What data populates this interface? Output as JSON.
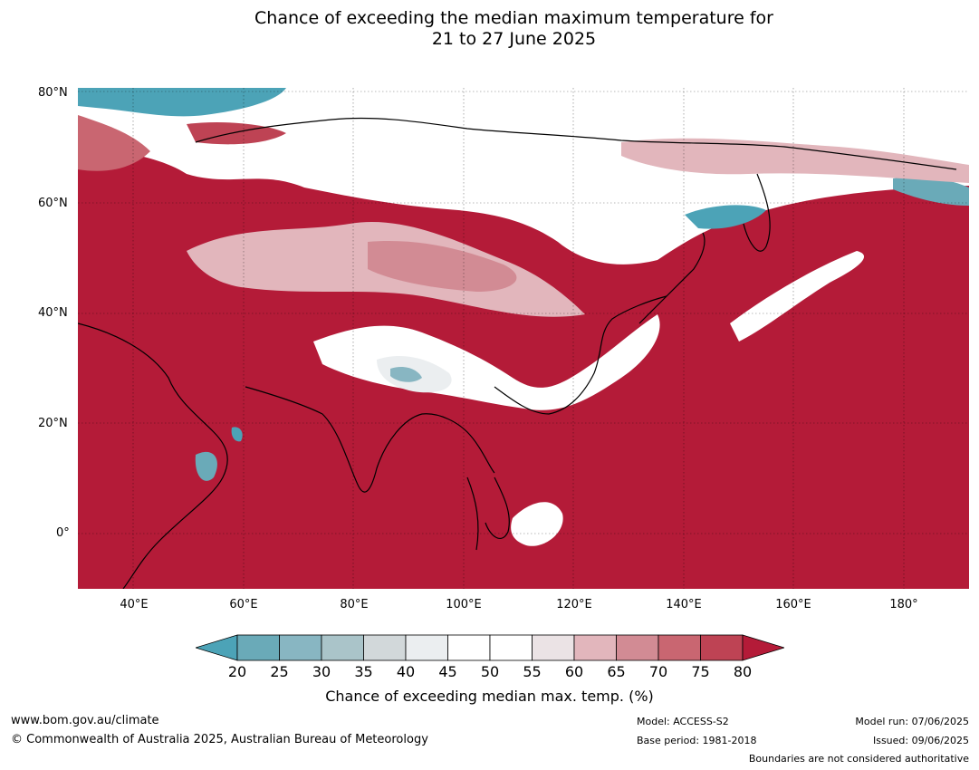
{
  "title": {
    "line1": "Chance of exceeding the median maximum temperature for",
    "line2": "21 to 27 June 2025"
  },
  "map": {
    "lat_labels": [
      "80°N",
      "60°N",
      "40°N",
      "20°N",
      "0°"
    ],
    "lon_labels": [
      "40°E",
      "60°E",
      "80°E",
      "100°E",
      "120°E",
      "140°E",
      "160°E",
      "180°"
    ],
    "extent": {
      "lon": [
        30,
        192
      ],
      "lat": [
        -10,
        81
      ]
    },
    "colors": {
      "ocean_high": "#b41b38",
      "land_neutral": "#ffffff",
      "low_teal": "#4ca3b7",
      "mid_pink": "#d28b94",
      "light_pink": "#e2b6bc"
    }
  },
  "colorbar": {
    "ticks": [
      "20",
      "25",
      "30",
      "35",
      "40",
      "45",
      "50",
      "55",
      "60",
      "65",
      "70",
      "75",
      "80"
    ],
    "colors": [
      "#4ca3b7",
      "#6aaab8",
      "#88b6c2",
      "#aac4c9",
      "#d2d8da",
      "#ebeef0",
      "#ffffff",
      "#ffffff",
      "#ebe3e5",
      "#e2b6bc",
      "#d28b94",
      "#c96671",
      "#be4354",
      "#b41b38"
    ],
    "label": "Chance of exceeding median max. temp. (%)"
  },
  "footer": {
    "website": "www.bom.gov.au/climate",
    "copyright": "© Commonwealth of Australia 2025, Australian Bureau of Meteorology",
    "model": "Model: ACCESS-S2",
    "base_period": "Base period: 1981-2018",
    "model_run": "Model run: 07/06/2025",
    "issued": "Issued: 09/06/2025",
    "boundaries": "Boundaries are not considered authoritative"
  }
}
